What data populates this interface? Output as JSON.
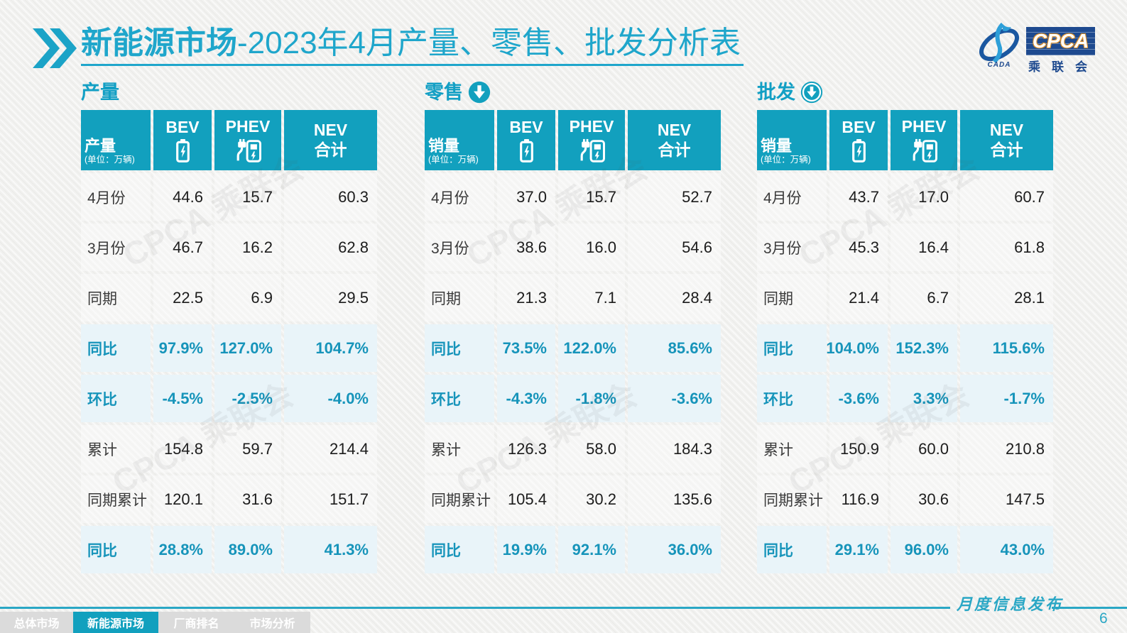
{
  "title": {
    "bold": "新能源市场",
    "rest": "-2023年4月产量、零售、批发分析表"
  },
  "logo": {
    "cada": "CADA",
    "cpca": "CPCA",
    "subtitle": "乘联会"
  },
  "watermark": "CPCA 乘联会",
  "colors": {
    "accent": "#12a0be",
    "title": "#1fa6cb",
    "highlight_bg": "#e9f4f9",
    "highlight_text": "#1694ba",
    "navy": "#1e4a8f"
  },
  "tables": [
    {
      "section_title": "产量",
      "arrow_icon": null,
      "unit_label": "产量",
      "unit_sub": "(单位：万辆)",
      "columns": [
        {
          "label": "BEV",
          "icon": "battery-icon"
        },
        {
          "label": "PHEV",
          "icon": "charger-icon"
        },
        {
          "label": "NEV",
          "label2": "合计"
        }
      ],
      "rows": [
        {
          "label": "4月份",
          "values": [
            "44.6",
            "15.7",
            "60.3"
          ],
          "type": "normal"
        },
        {
          "label": "3月份",
          "values": [
            "46.7",
            "16.2",
            "62.8"
          ],
          "type": "normal"
        },
        {
          "label": "同期",
          "values": [
            "22.5",
            "6.9",
            "29.5"
          ],
          "type": "normal"
        },
        {
          "label": "同比",
          "values": [
            "97.9%",
            "127.0%",
            "104.7%"
          ],
          "type": "highlight"
        },
        {
          "label": "环比",
          "values": [
            "-4.5%",
            "-2.5%",
            "-4.0%"
          ],
          "type": "highlight"
        },
        {
          "label": "累计",
          "values": [
            "154.8",
            "59.7",
            "214.4"
          ],
          "type": "normal"
        },
        {
          "label": "同期累计",
          "values": [
            "120.1",
            "31.6",
            "151.7"
          ],
          "type": "normal"
        },
        {
          "label": "同比",
          "values": [
            "28.8%",
            "89.0%",
            "41.3%"
          ],
          "type": "highlight"
        }
      ]
    },
    {
      "section_title": "零售",
      "arrow_icon": "down-arrow-circle-icon",
      "unit_label": "销量",
      "unit_sub": "(单位：万辆)",
      "columns": [
        {
          "label": "BEV",
          "icon": "battery-icon"
        },
        {
          "label": "PHEV",
          "icon": "charger-icon"
        },
        {
          "label": "NEV",
          "label2": "合计"
        }
      ],
      "rows": [
        {
          "label": "4月份",
          "values": [
            "37.0",
            "15.7",
            "52.7"
          ],
          "type": "normal"
        },
        {
          "label": "3月份",
          "values": [
            "38.6",
            "16.0",
            "54.6"
          ],
          "type": "normal"
        },
        {
          "label": "同期",
          "values": [
            "21.3",
            "7.1",
            "28.4"
          ],
          "type": "normal"
        },
        {
          "label": "同比",
          "values": [
            "73.5%",
            "122.0%",
            "85.6%"
          ],
          "type": "highlight"
        },
        {
          "label": "环比",
          "values": [
            "-4.3%",
            "-1.8%",
            "-3.6%"
          ],
          "type": "highlight"
        },
        {
          "label": "累计",
          "values": [
            "126.3",
            "58.0",
            "184.3"
          ],
          "type": "normal"
        },
        {
          "label": "同期累计",
          "values": [
            "105.4",
            "30.2",
            "135.6"
          ],
          "type": "normal"
        },
        {
          "label": "同比",
          "values": [
            "19.9%",
            "92.1%",
            "36.0%"
          ],
          "type": "highlight"
        }
      ]
    },
    {
      "section_title": "批发",
      "arrow_icon": "down-arrow-ring-icon",
      "unit_label": "销量",
      "unit_sub": "(单位：万辆)",
      "columns": [
        {
          "label": "BEV",
          "icon": "battery-icon"
        },
        {
          "label": "PHEV",
          "icon": "charger-icon"
        },
        {
          "label": "NEV",
          "label2": "合计"
        }
      ],
      "rows": [
        {
          "label": "4月份",
          "values": [
            "43.7",
            "17.0",
            "60.7"
          ],
          "type": "normal"
        },
        {
          "label": "3月份",
          "values": [
            "45.3",
            "16.4",
            "61.8"
          ],
          "type": "normal"
        },
        {
          "label": "同期",
          "values": [
            "21.4",
            "6.7",
            "28.1"
          ],
          "type": "normal"
        },
        {
          "label": "同比",
          "values": [
            "104.0%",
            "152.3%",
            "115.6%"
          ],
          "type": "highlight"
        },
        {
          "label": "环比",
          "values": [
            "-3.6%",
            "3.3%",
            "-1.7%"
          ],
          "type": "highlight"
        },
        {
          "label": "累计",
          "values": [
            "150.9",
            "60.0",
            "210.8"
          ],
          "type": "normal"
        },
        {
          "label": "同期累计",
          "values": [
            "116.9",
            "30.6",
            "147.5"
          ],
          "type": "normal"
        },
        {
          "label": "同比",
          "values": [
            "29.1%",
            "96.0%",
            "43.0%"
          ],
          "type": "highlight"
        }
      ]
    }
  ],
  "footer": {
    "tabs": [
      {
        "label": "总体市场",
        "active": false
      },
      {
        "label": "新能源市场",
        "active": true
      },
      {
        "label": "厂商排名",
        "active": false
      },
      {
        "label": "市场分析",
        "active": false
      }
    ],
    "note": "月度信息发布",
    "page": "6"
  }
}
